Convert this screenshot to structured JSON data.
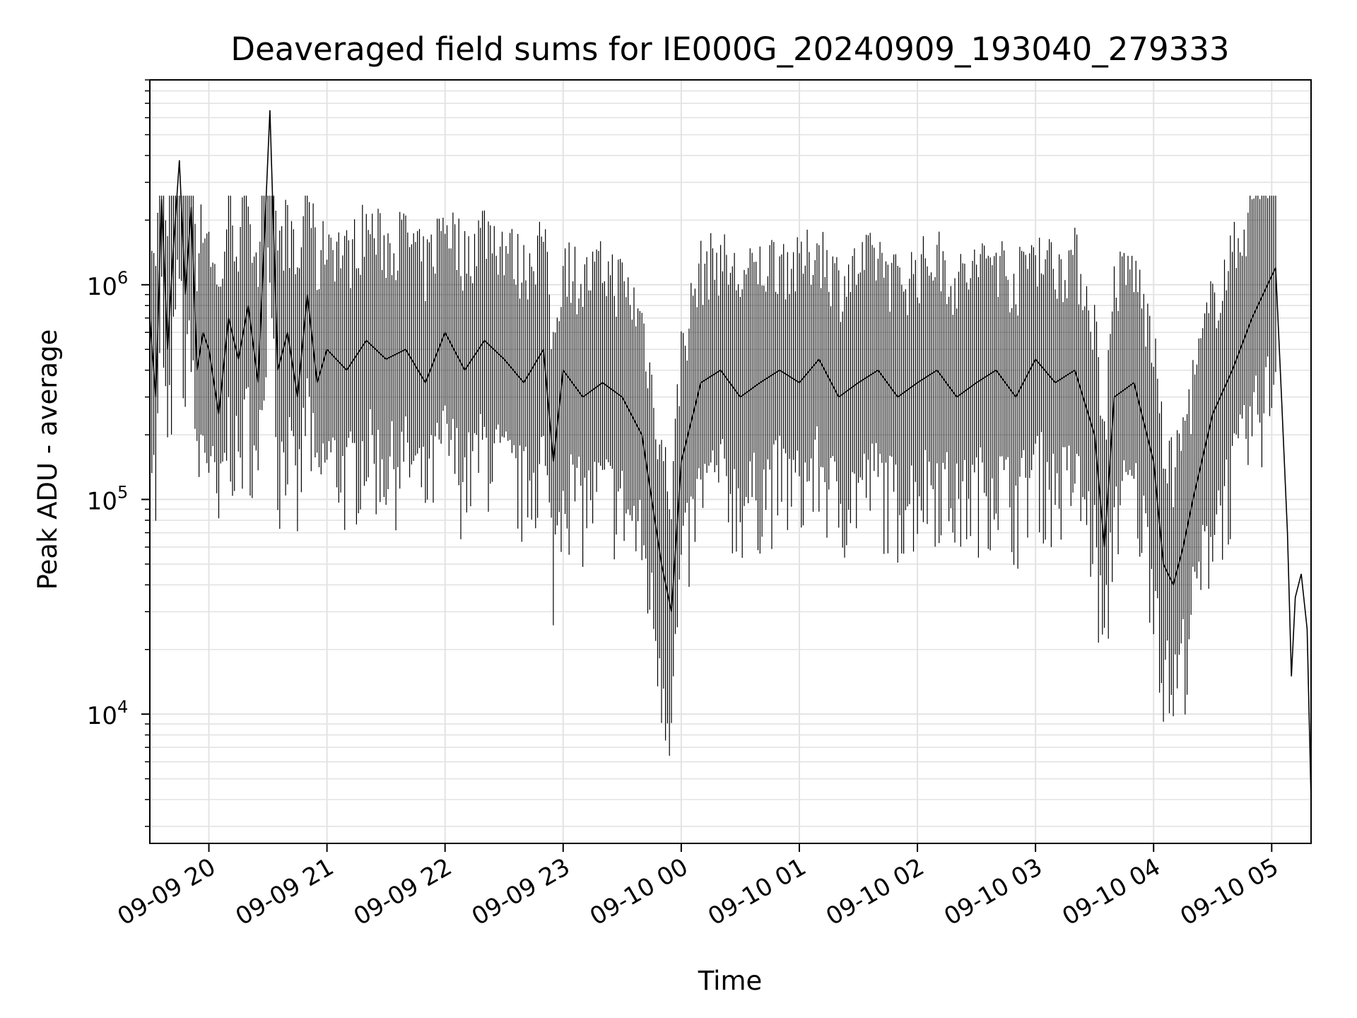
{
  "chart_data": {
    "type": "line",
    "title": "Deaveraged field sums for IE000G_20240909_193040_279333",
    "xlabel": "Time",
    "ylabel": "Peak ADU - average",
    "yscale": "log",
    "xlim": [
      "2024-09-09 19:30",
      "2024-09-10 05:20"
    ],
    "ylim": [
      2500,
      9000000
    ],
    "grid": true,
    "line_color": "#000000",
    "x_ticks": [
      {
        "label": "09-09 20",
        "value": "2024-09-09 20:00"
      },
      {
        "label": "09-09 21",
        "value": "2024-09-09 21:00"
      },
      {
        "label": "09-09 22",
        "value": "2024-09-09 22:00"
      },
      {
        "label": "09-09 23",
        "value": "2024-09-09 23:00"
      },
      {
        "label": "09-10 00",
        "value": "2024-09-10 00:00"
      },
      {
        "label": "09-10 01",
        "value": "2024-09-10 01:00"
      },
      {
        "label": "09-10 02",
        "value": "2024-09-10 02:00"
      },
      {
        "label": "09-10 03",
        "value": "2024-09-10 03:00"
      },
      {
        "label": "09-10 04",
        "value": "2024-09-10 04:00"
      },
      {
        "label": "09-10 05",
        "value": "2024-09-10 05:00"
      }
    ],
    "y_ticks": [
      {
        "base": "10",
        "exp": "4",
        "value": 10000
      },
      {
        "base": "10",
        "exp": "5",
        "value": 100000
      },
      {
        "base": "10",
        "exp": "6",
        "value": 1000000
      }
    ],
    "series": [
      {
        "x": [
          "2024-09-09 19:30",
          "2024-09-09 19:33",
          "2024-09-09 19:36",
          "2024-09-09 19:39",
          "2024-09-09 19:42",
          "2024-09-09 19:45",
          "2024-09-09 19:48",
          "2024-09-09 19:51",
          "2024-09-09 19:54",
          "2024-09-09 19:57",
          "2024-09-09 20:00",
          "2024-09-09 20:05",
          "2024-09-09 20:10",
          "2024-09-09 20:15",
          "2024-09-09 20:20",
          "2024-09-09 20:25",
          "2024-09-09 20:31",
          "2024-09-09 20:35",
          "2024-09-09 20:40",
          "2024-09-09 20:45",
          "2024-09-09 20:50",
          "2024-09-09 20:55",
          "2024-09-09 21:00",
          "2024-09-09 21:10",
          "2024-09-09 21:20",
          "2024-09-09 21:30",
          "2024-09-09 21:40",
          "2024-09-09 21:50",
          "2024-09-09 22:00",
          "2024-09-09 22:10",
          "2024-09-09 22:20",
          "2024-09-09 22:30",
          "2024-09-09 22:40",
          "2024-09-09 22:50",
          "2024-09-09 22:55",
          "2024-09-09 23:00",
          "2024-09-09 23:10",
          "2024-09-09 23:20",
          "2024-09-09 23:30",
          "2024-09-09 23:40",
          "2024-09-09 23:45",
          "2024-09-09 23:50",
          "2024-09-09 23:55",
          "2024-09-10 00:00",
          "2024-09-10 00:10",
          "2024-09-10 00:20",
          "2024-09-10 00:30",
          "2024-09-10 00:40",
          "2024-09-10 00:50",
          "2024-09-10 01:00",
          "2024-09-10 01:10",
          "2024-09-10 01:20",
          "2024-09-10 01:30",
          "2024-09-10 01:40",
          "2024-09-10 01:50",
          "2024-09-10 02:00",
          "2024-09-10 02:10",
          "2024-09-10 02:20",
          "2024-09-10 02:30",
          "2024-09-10 02:40",
          "2024-09-10 02:50",
          "2024-09-10 03:00",
          "2024-09-10 03:10",
          "2024-09-10 03:20",
          "2024-09-10 03:30",
          "2024-09-10 03:35",
          "2024-09-10 03:40",
          "2024-09-10 03:50",
          "2024-09-10 04:00",
          "2024-09-10 04:05",
          "2024-09-10 04:10",
          "2024-09-10 04:15",
          "2024-09-10 04:20",
          "2024-09-10 04:30",
          "2024-09-10 04:40",
          "2024-09-10 04:50",
          "2024-09-10 05:00",
          "2024-09-10 05:02",
          "2024-09-10 05:05",
          "2024-09-10 05:08",
          "2024-09-10 05:10",
          "2024-09-10 05:12",
          "2024-09-10 05:15",
          "2024-09-10 05:18",
          "2024-09-10 05:20"
        ],
        "y": [
          700000,
          300000,
          2500000,
          500000,
          1500000,
          3800000,
          900000,
          2300000,
          400000,
          600000,
          500000,
          250000,
          700000,
          450000,
          800000,
          350000,
          6500000,
          400000,
          600000,
          300000,
          900000,
          350000,
          500000,
          400000,
          550000,
          450000,
          500000,
          350000,
          600000,
          400000,
          550000,
          450000,
          350000,
          500000,
          150000,
          400000,
          300000,
          350000,
          300000,
          200000,
          100000,
          50000,
          30000,
          150000,
          350000,
          400000,
          300000,
          350000,
          400000,
          350000,
          450000,
          300000,
          350000,
          400000,
          300000,
          350000,
          400000,
          300000,
          350000,
          400000,
          300000,
          450000,
          350000,
          400000,
          200000,
          60000,
          300000,
          350000,
          150000,
          50000,
          40000,
          60000,
          100000,
          250000,
          400000,
          700000,
          1100000,
          1200000,
          300000,
          70000,
          15000,
          35000,
          45000,
          25000,
          4000
        ]
      }
    ]
  }
}
